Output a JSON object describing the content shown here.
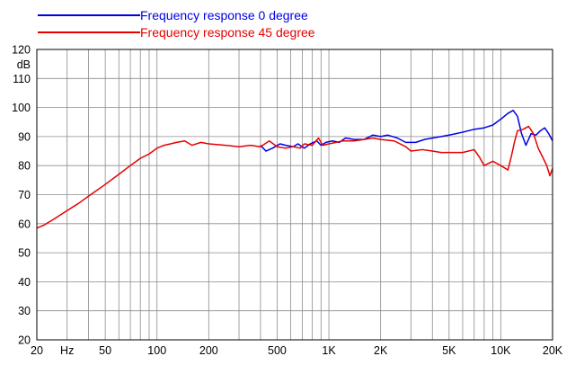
{
  "chart_data": {
    "type": "line",
    "x_scale": "log",
    "grid": true,
    "legend_position": "top-left",
    "xlim": [
      20,
      20000
    ],
    "ylim": [
      20,
      120
    ],
    "ylabel": "dB",
    "xlabel": "Hz",
    "x_ticks": [
      {
        "value": 20,
        "label": "20"
      },
      {
        "value": 30,
        "label": "Hz"
      },
      {
        "value": 50,
        "label": "50"
      },
      {
        "value": 100,
        "label": "100"
      },
      {
        "value": 200,
        "label": "200"
      },
      {
        "value": 500,
        "label": "500"
      },
      {
        "value": 1000,
        "label": "1K"
      },
      {
        "value": 2000,
        "label": "2K"
      },
      {
        "value": 5000,
        "label": "5K"
      },
      {
        "value": 10000,
        "label": "10K"
      },
      {
        "value": 20000,
        "label": "20K"
      }
    ],
    "y_ticks": [
      20,
      30,
      40,
      50,
      60,
      70,
      80,
      90,
      100,
      110,
      120
    ],
    "series": [
      {
        "name": "Frequency response 0 degree",
        "color": "#0000e6",
        "points": [
          [
            400,
            87
          ],
          [
            430,
            85
          ],
          [
            470,
            86
          ],
          [
            520,
            87.5
          ],
          [
            560,
            87
          ],
          [
            620,
            86.5
          ],
          [
            660,
            87.5
          ],
          [
            720,
            86
          ],
          [
            780,
            87.5
          ],
          [
            850,
            88.5
          ],
          [
            900,
            87
          ],
          [
            960,
            88
          ],
          [
            1050,
            88.5
          ],
          [
            1150,
            88
          ],
          [
            1250,
            89.5
          ],
          [
            1400,
            89
          ],
          [
            1600,
            89
          ],
          [
            1800,
            90.5
          ],
          [
            2000,
            90
          ],
          [
            2200,
            90.5
          ],
          [
            2500,
            89.5
          ],
          [
            2800,
            88
          ],
          [
            3200,
            88
          ],
          [
            3600,
            89
          ],
          [
            4000,
            89.5
          ],
          [
            4500,
            90
          ],
          [
            5000,
            90.5
          ],
          [
            6000,
            91.5
          ],
          [
            7000,
            92.5
          ],
          [
            8000,
            93
          ],
          [
            9000,
            94
          ],
          [
            10000,
            96
          ],
          [
            11000,
            98
          ],
          [
            11800,
            99
          ],
          [
            12500,
            97
          ],
          [
            13200,
            91
          ],
          [
            14000,
            87
          ],
          [
            15000,
            91
          ],
          [
            16000,
            90.5
          ],
          [
            17000,
            92
          ],
          [
            18000,
            93
          ],
          [
            19000,
            91
          ],
          [
            20000,
            88.5
          ]
        ]
      },
      {
        "name": "Frequency response 45 degree",
        "color": "#e60000",
        "points": [
          [
            20,
            58.5
          ],
          [
            22,
            59.5
          ],
          [
            25,
            61.5
          ],
          [
            30,
            64.5
          ],
          [
            35,
            67
          ],
          [
            40,
            69.5
          ],
          [
            50,
            73.5
          ],
          [
            60,
            77
          ],
          [
            70,
            80
          ],
          [
            80,
            82.5
          ],
          [
            90,
            84
          ],
          [
            100,
            86
          ],
          [
            110,
            87
          ],
          [
            120,
            87.5
          ],
          [
            130,
            88
          ],
          [
            145,
            88.5
          ],
          [
            160,
            87
          ],
          [
            180,
            88
          ],
          [
            200,
            87.5
          ],
          [
            250,
            87
          ],
          [
            300,
            86.5
          ],
          [
            350,
            87
          ],
          [
            400,
            86.5
          ],
          [
            450,
            88.5
          ],
          [
            500,
            86.5
          ],
          [
            560,
            86
          ],
          [
            620,
            86.5
          ],
          [
            680,
            86
          ],
          [
            720,
            87.5
          ],
          [
            800,
            87
          ],
          [
            870,
            89.5
          ],
          [
            920,
            87
          ],
          [
            1000,
            87.5
          ],
          [
            1100,
            88
          ],
          [
            1200,
            88.5
          ],
          [
            1400,
            88.5
          ],
          [
            1600,
            89
          ],
          [
            1800,
            89.5
          ],
          [
            2000,
            89
          ],
          [
            2400,
            88.5
          ],
          [
            2800,
            86.5
          ],
          [
            3000,
            85
          ],
          [
            3500,
            85.5
          ],
          [
            4000,
            85
          ],
          [
            4500,
            84.5
          ],
          [
            5000,
            84.5
          ],
          [
            6000,
            84.5
          ],
          [
            7000,
            85.5
          ],
          [
            7500,
            83
          ],
          [
            8000,
            80
          ],
          [
            9000,
            81.5
          ],
          [
            10000,
            80
          ],
          [
            11000,
            78.5
          ],
          [
            11500,
            83
          ],
          [
            12000,
            88
          ],
          [
            12500,
            92
          ],
          [
            13500,
            92.5
          ],
          [
            14500,
            93.5
          ],
          [
            15500,
            91
          ],
          [
            16500,
            86
          ],
          [
            17500,
            83
          ],
          [
            18500,
            80
          ],
          [
            19300,
            76.5
          ],
          [
            20000,
            79
          ]
        ]
      }
    ]
  }
}
